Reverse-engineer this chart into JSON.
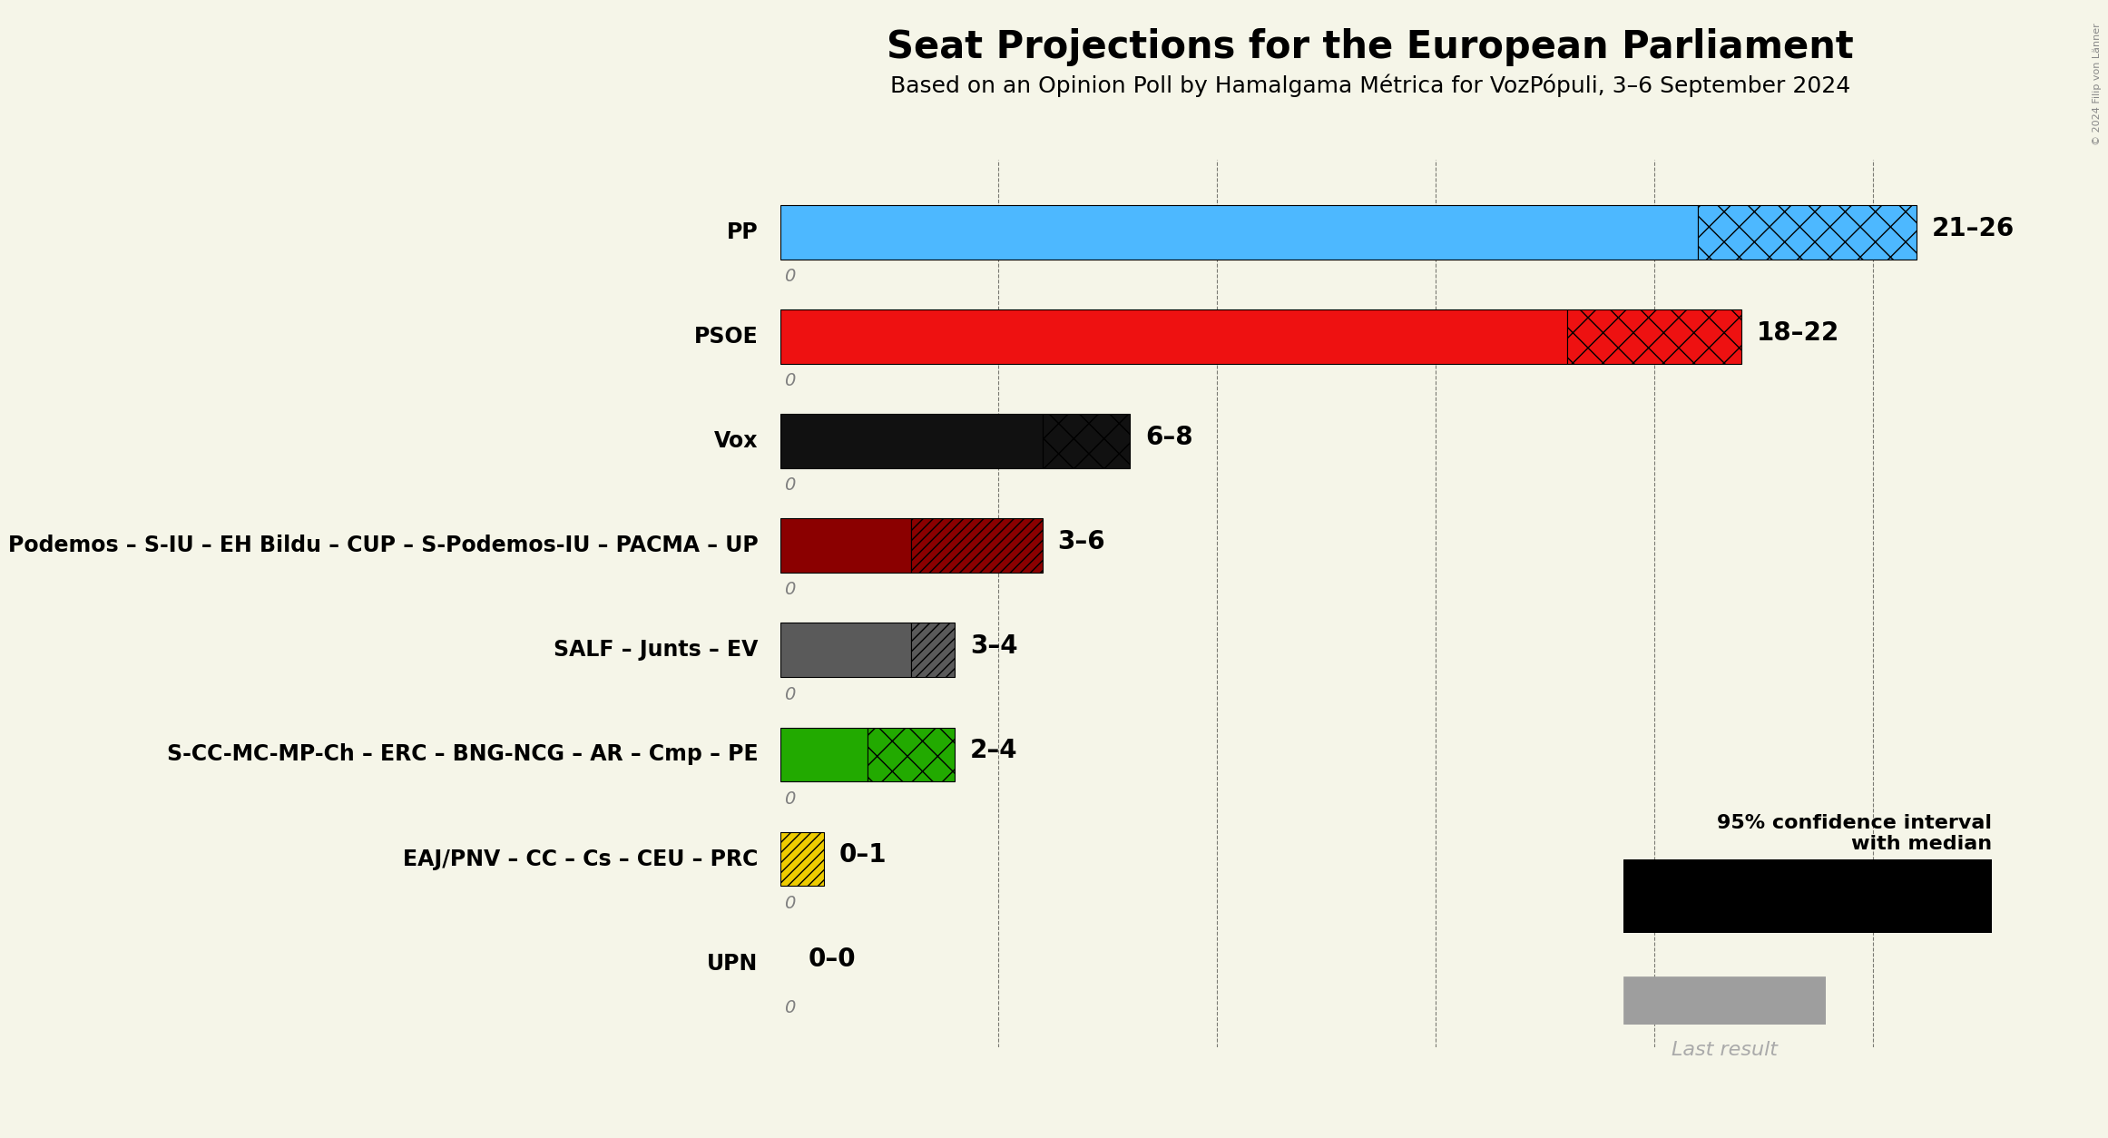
{
  "title": "Seat Projections for the European Parliament",
  "subtitle": "Based on an Opinion Poll by Hamalgama Métrica for VozPópuli, 3–6 September 2024",
  "background_color": "#f5f5e8",
  "parties": [
    {
      "name": "PP",
      "low": 21,
      "high": 26,
      "last": 0,
      "color": "#4db8ff",
      "hatch": "x",
      "label": "21–26"
    },
    {
      "name": "PSOE",
      "low": 18,
      "high": 22,
      "last": 0,
      "color": "#ee1111",
      "hatch": "x",
      "label": "18–22"
    },
    {
      "name": "Vox",
      "low": 6,
      "high": 8,
      "last": 0,
      "color": "#111111",
      "hatch": "x",
      "label": "6–8"
    },
    {
      "name": "Podemos – S-IU – EH Bildu – CUP – S-Podemos-IU – PACMA – UP",
      "low": 3,
      "high": 6,
      "last": 0,
      "color": "#8b0000",
      "hatch": "///",
      "label": "3–6"
    },
    {
      "name": "SALF – Junts – EV",
      "low": 3,
      "high": 4,
      "last": 0,
      "color": "#5a5a5a",
      "hatch": "///",
      "label": "3–4"
    },
    {
      "name": "S-CC-MC-MP-Ch – ERC – BNG-NCG – AR – Cmp – PE",
      "low": 2,
      "high": 4,
      "last": 0,
      "color": "#22aa00",
      "hatch": "x",
      "label": "2–4"
    },
    {
      "name": "EAJ/PNV – CC – Cs – CEU – PRC",
      "low": 0,
      "high": 1,
      "last": 0,
      "color": "#eecc00",
      "hatch": "///",
      "label": "0–1"
    },
    {
      "name": "UPN",
      "low": 0,
      "high": 0,
      "last": 0,
      "color": "#999999",
      "hatch": "x",
      "label": "0–0"
    }
  ],
  "xlim": [
    0,
    27
  ],
  "gridlines": [
    5,
    10,
    15,
    20,
    25
  ],
  "copyright": "© 2024 Filip von Länner"
}
